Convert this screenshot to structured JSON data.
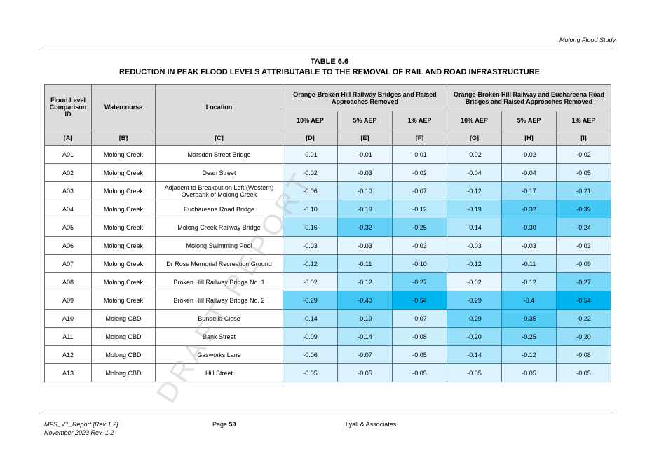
{
  "header": {
    "running_title": "Molong Flood Study"
  },
  "title": {
    "line1": "TABLE 6.6",
    "line2": "REDUCTION IN PEAK FLOOD LEVELS ATTRIBUTABLE TO THE REMOVAL OF RAIL AND ROAD INFRASTRUCTURE"
  },
  "table": {
    "col_id": "Flood Level Comparison ID",
    "col_watercourse": "Watercourse",
    "col_location": "Location",
    "group1": "Orange-Broken Hill Railway Bridges and Raised Approaches Removed",
    "group2": "Orange-Broken Hill Railway and Euchareena Road Bridges and Raised Approaches Removed",
    "aep_labels": [
      "10% AEP",
      "5% AEP",
      "1% AEP",
      "10% AEP",
      "5% AEP",
      "1% AEP"
    ],
    "letters": [
      "[A[",
      "[B]",
      "[C]",
      "[D]",
      "[E]",
      "[F]",
      "[G]",
      "[H]",
      "[I]"
    ],
    "rows": [
      {
        "id": "A01",
        "watercourse": "Molong Creek",
        "location": "Marsden Street Bridge",
        "values": [
          "-0.01",
          "-0.01",
          "-0.01",
          "-0.02",
          "-0.02",
          "-0.02"
        ]
      },
      {
        "id": "A02",
        "watercourse": "Molong Creek",
        "location": "Dean Street",
        "values": [
          "-0.02",
          "-0.03",
          "-0.02",
          "-0.04",
          "-0.04",
          "-0.05"
        ]
      },
      {
        "id": "A03",
        "watercourse": "Molong Creek",
        "location": "Adjacent to Breakout on Left (Western) Overbank of Molong Creek",
        "values": [
          "-0.06",
          "-0.10",
          "-0.07",
          "-0.12",
          "-0.17",
          "-0.21"
        ]
      },
      {
        "id": "A04",
        "watercourse": "Molong Creek",
        "location": "Euchareena Road Bridge",
        "values": [
          "-0.10",
          "-0.19",
          "-0.12",
          "-0.19",
          "-0.32",
          "-0.39"
        ]
      },
      {
        "id": "A05",
        "watercourse": "Molong Creek",
        "location": "Molong Creek Railway Bridge",
        "values": [
          "-0.16",
          "-0.32",
          "-0.25",
          "-0.14",
          "-0.30",
          "-0.24"
        ]
      },
      {
        "id": "A06",
        "watercourse": "Molong Creek",
        "location": "Molong Swimming Pool",
        "values": [
          "-0.03",
          "-0.03",
          "-0.03",
          "-0.03",
          "-0.03",
          "-0.03"
        ]
      },
      {
        "id": "A07",
        "watercourse": "Molong Creek",
        "location": "Dr Ross Memorial Recreation Ground",
        "values": [
          "-0.12",
          "-0.11",
          "-0.10",
          "-0.12",
          "-0.11",
          "-0.09"
        ]
      },
      {
        "id": "A08",
        "watercourse": "Molong Creek",
        "location": "Broken Hill Railway Bridge No. 1",
        "values": [
          "-0.02",
          "-0.12",
          "-0.27",
          "-0.02",
          "-0.12",
          "-0.27"
        ]
      },
      {
        "id": "A09",
        "watercourse": "Molong Creek",
        "location": "Broken Hill Railway Bridge No. 2",
        "values": [
          "-0.29",
          "-0.40",
          "-0.54",
          "-0.29",
          "-0.4",
          "-0.54"
        ]
      },
      {
        "id": "A10",
        "watercourse": "Molong CBD",
        "location": "Bundella Close",
        "values": [
          "-0.14",
          "-0.19",
          "-0.07",
          "-0.29",
          "-0.35",
          "-0.22"
        ]
      },
      {
        "id": "A11",
        "watercourse": "Molong CBD",
        "location": "Bank Street",
        "values": [
          "-0.09",
          "-0.14",
          "-0.08",
          "-0.20",
          "-0.25",
          "-0.20"
        ]
      },
      {
        "id": "A12",
        "watercourse": "Molong CBD",
        "location": "Gasworks Lane",
        "values": [
          "-0.06",
          "-0.07",
          "-0.05",
          "-0.14",
          "-0.12",
          "-0.08"
        ]
      },
      {
        "id": "A13",
        "watercourse": "Molong CBD",
        "location": "Hill Street",
        "values": [
          "-0.05",
          "-0.05",
          "-0.05",
          "-0.05",
          "-0.05",
          "-0.05"
        ]
      }
    ]
  },
  "watermark": "DRAFT REPORT",
  "footer": {
    "report_id": "MFS_V1_Report [Rev 1.2]",
    "date_rev": "November 2023   Rev. 1.2",
    "page_label": "Page",
    "page_number": "59",
    "company": "Lyall & Associates"
  }
}
